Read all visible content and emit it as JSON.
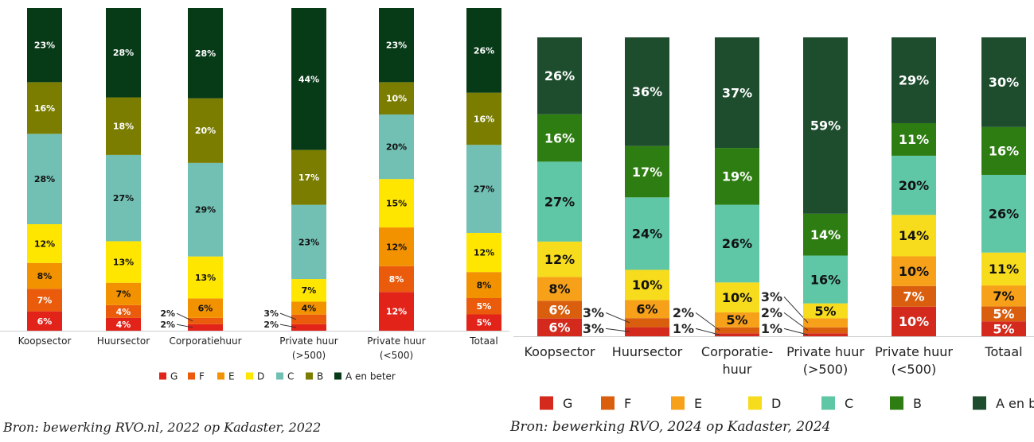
{
  "chart_data": [
    {
      "type": "bar",
      "stacked": true,
      "categories": [
        [
          "Koopsector"
        ],
        [
          "Huursector"
        ],
        [
          "Corporatiehuur"
        ],
        [
          "Private huur",
          "(>500)"
        ],
        [
          "Private huur",
          "(<500)"
        ],
        [
          "Totaal"
        ]
      ],
      "series": [
        {
          "name": "G",
          "color": "#e2231a",
          "values": [
            6,
            4,
            2,
            2,
            12,
            5
          ]
        },
        {
          "name": "F",
          "color": "#ea5b0c",
          "values": [
            7,
            4,
            2,
            3,
            8,
            5
          ]
        },
        {
          "name": "E",
          "color": "#f39200",
          "values": [
            8,
            7,
            6,
            4,
            12,
            8
          ]
        },
        {
          "name": "D",
          "color": "#ffe600",
          "values": [
            12,
            13,
            13,
            7,
            15,
            12
          ]
        },
        {
          "name": "C",
          "color": "#72bfb4",
          "values": [
            28,
            27,
            29,
            23,
            20,
            27
          ]
        },
        {
          "name": "B",
          "color": "#7a7d00",
          "values": [
            16,
            18,
            20,
            17,
            10,
            16
          ]
        },
        {
          "name": "A en beter",
          "color": "#073b18",
          "values": [
            23,
            28,
            28,
            44,
            23,
            26
          ]
        }
      ],
      "unit": "%",
      "legend": "bottom",
      "source": "Bron: bewerking RVO.nl, 2022 op Kadaster, 2022"
    },
    {
      "type": "bar",
      "stacked": true,
      "categories": [
        [
          "Koopsector"
        ],
        [
          "Huursector"
        ],
        [
          "Corporatie-",
          "huur"
        ],
        [
          "Private huur",
          "(>500)"
        ],
        [
          "Private huur",
          "(<500)"
        ],
        [
          "Totaal"
        ]
      ],
      "series": [
        {
          "name": "G",
          "color": "#d42a1e",
          "values": [
            6,
            3,
            1,
            1,
            10,
            5
          ]
        },
        {
          "name": "F",
          "color": "#d95f0e",
          "values": [
            6,
            3,
            2,
            2,
            7,
            5
          ]
        },
        {
          "name": "E",
          "color": "#f7a11a",
          "values": [
            8,
            6,
            5,
            3,
            10,
            7
          ]
        },
        {
          "name": "D",
          "color": "#f7dc1d",
          "values": [
            12,
            10,
            10,
            5,
            14,
            11
          ]
        },
        {
          "name": "C",
          "color": "#5fc7a5",
          "values": [
            27,
            24,
            26,
            16,
            20,
            26
          ]
        },
        {
          "name": "B",
          "color": "#2e7d12",
          "values": [
            16,
            17,
            19,
            14,
            11,
            16
          ]
        },
        {
          "name": "A en beter",
          "color": "#1d4d2d",
          "values": [
            26,
            36,
            37,
            59,
            29,
            30
          ]
        }
      ],
      "unit": "%",
      "legend": "bottom",
      "source": "Bron: bewerking RVO, 2024 op Kadaster, 2024"
    }
  ]
}
